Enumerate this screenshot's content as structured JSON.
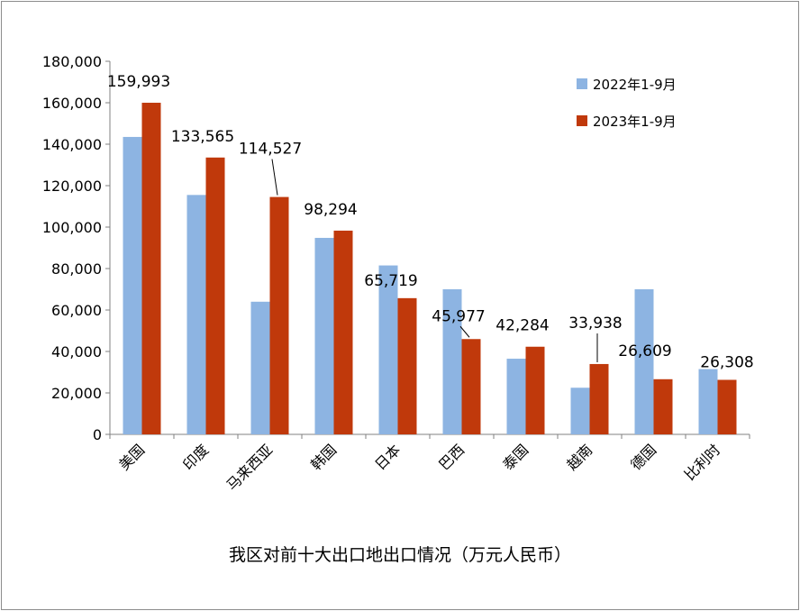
{
  "chart_data": {
    "type": "bar",
    "title": "我区对前十大出口地出口情况（万元人民币）",
    "xlabel": "",
    "ylabel": "",
    "ylim": [
      0,
      180000
    ],
    "yticks": [
      "0",
      "20,000",
      "40,000",
      "60,000",
      "80,000",
      "100,000",
      "120,000",
      "140,000",
      "160,000",
      "180,000"
    ],
    "categories": [
      "美国",
      "印度",
      "马来西亚",
      "韩国",
      "日本",
      "巴西",
      "泰国",
      "越南",
      "德国",
      "比利时"
    ],
    "series": [
      {
        "name": "2022年1-9月",
        "color": "#8DB4E2",
        "values": [
          143500,
          115500,
          64000,
          94800,
          81500,
          70000,
          36500,
          22500,
          70000,
          31500
        ]
      },
      {
        "name": "2023年1-9月",
        "color": "#C0390B",
        "values": [
          159993,
          133565,
          114527,
          98294,
          65719,
          45977,
          42284,
          33938,
          26609,
          26308
        ]
      }
    ],
    "data_labels": [
      "159,993",
      "133,565",
      "114,527",
      "98,294",
      "65,719",
      "45,977",
      "42,284",
      "33,938",
      "26,609",
      "26,308"
    ],
    "grid": false,
    "legend": "top-right"
  }
}
